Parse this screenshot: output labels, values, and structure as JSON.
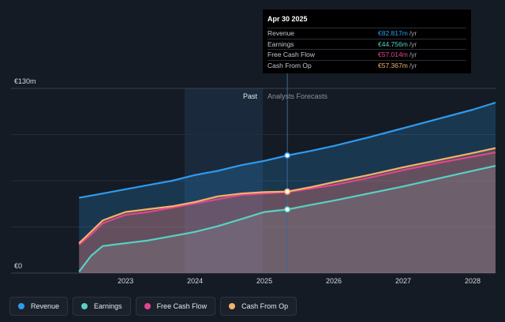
{
  "chart_data": {
    "type": "area",
    "y_axis": {
      "top_label": "€130m",
      "bottom_label": "€0",
      "ylim": [
        0,
        130
      ],
      "grid": true
    },
    "x_ticks": [
      "2023",
      "2024",
      "2025",
      "2026",
      "2027",
      "2028"
    ],
    "x_tick_values": [
      2023,
      2024,
      2025,
      2026,
      2027,
      2028
    ],
    "xlim": [
      2021.35,
      2028.33
    ],
    "past_label": "Past",
    "forecast_label": "Analysts Forecasts",
    "divider_x": 2025.33,
    "highlight_start_x": 2024.33,
    "series": [
      {
        "name": "Revenue",
        "color": "#2e9bef",
        "x": [
          2022.33,
          2022.67,
          2023.0,
          2023.33,
          2023.67,
          2024.0,
          2024.33,
          2024.67,
          2025.0,
          2025.33,
          2025.67,
          2026.0,
          2026.5,
          2027.0,
          2027.5,
          2028.0,
          2028.33
        ],
        "values": [
          53,
          56,
          59,
          62,
          65,
          69,
          72,
          76,
          79,
          82.8,
          86,
          89.5,
          95.5,
          102,
          108.5,
          115,
          120
        ]
      },
      {
        "name": "Earnings",
        "color": "#58d1c2",
        "x": [
          2022.33,
          2022.5,
          2022.67,
          2022.83,
          2023.0,
          2023.33,
          2023.67,
          2024.0,
          2024.33,
          2024.67,
          2025.0,
          2025.33,
          2025.67,
          2026.0,
          2026.5,
          2027.0,
          2027.5,
          2028.0,
          2028.33
        ],
        "values": [
          1,
          12,
          19,
          20,
          21,
          23,
          26,
          29,
          33,
          38,
          43,
          44.8,
          48,
          51,
          56,
          61,
          66.5,
          72,
          75.5
        ]
      },
      {
        "name": "Free Cash Flow",
        "color": "#e0468f",
        "x": [
          2022.33,
          2022.5,
          2022.67,
          2022.83,
          2023.0,
          2023.33,
          2023.67,
          2024.0,
          2024.33,
          2024.67,
          2025.0,
          2025.33,
          2025.67,
          2026.0,
          2026.5,
          2027.0,
          2027.5,
          2028.0,
          2028.33
        ],
        "values": [
          20,
          27,
          35,
          38,
          41,
          43,
          46,
          49,
          52,
          55,
          56,
          57.0,
          59.5,
          62,
          67,
          72.5,
          77.5,
          82,
          85
        ]
      },
      {
        "name": "Cash From Op",
        "color": "#f4b26a",
        "x": [
          2022.33,
          2022.5,
          2022.67,
          2022.83,
          2023.0,
          2023.33,
          2023.67,
          2024.0,
          2024.33,
          2024.67,
          2025.0,
          2025.33,
          2025.67,
          2026.0,
          2026.5,
          2027.0,
          2027.5,
          2028.0,
          2028.33
        ],
        "values": [
          21,
          29,
          37,
          40,
          43,
          45,
          47,
          50,
          54,
          56,
          57,
          57.4,
          60.5,
          64,
          69,
          74.5,
          79.5,
          84.5,
          88
        ]
      }
    ]
  },
  "tooltip": {
    "date": "Apr 30 2025",
    "rows": [
      {
        "label": "Revenue",
        "value": "€82.817m",
        "unit": "/yr",
        "color": "#2e9bef"
      },
      {
        "label": "Earnings",
        "value": "€44.756m",
        "unit": "/yr",
        "color": "#58d1c2"
      },
      {
        "label": "Free Cash Flow",
        "value": "€57.014m",
        "unit": "/yr",
        "color": "#e0468f"
      },
      {
        "label": "Cash From Op",
        "value": "€57.367m",
        "unit": "/yr",
        "color": "#f4b26a"
      }
    ]
  },
  "legend": [
    {
      "label": "Revenue",
      "color": "#2e9bef"
    },
    {
      "label": "Earnings",
      "color": "#58d1c2"
    },
    {
      "label": "Free Cash Flow",
      "color": "#e0468f"
    },
    {
      "label": "Cash From Op",
      "color": "#f4b26a"
    }
  ]
}
